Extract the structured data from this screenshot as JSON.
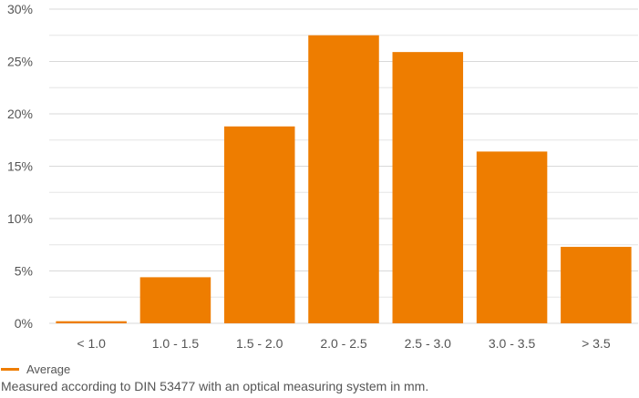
{
  "chart_data": {
    "type": "bar",
    "categories": [
      "< 1.0",
      "1.0 - 1.5",
      "1.5 - 2.0",
      "2.0 - 2.5",
      "2.5 - 3.0",
      "3.0 - 3.5",
      "> 3.5"
    ],
    "series": [
      {
        "name": "Average",
        "values": [
          0.2,
          4.4,
          18.8,
          27.5,
          25.9,
          16.4,
          7.3
        ],
        "color": "#ee7d00"
      }
    ],
    "ylim": [
      0,
      30
    ],
    "yticks": [
      0,
      5,
      10,
      15,
      20,
      25,
      30
    ],
    "ytick_format": "%",
    "grid": true,
    "legend_position": "bottom-left",
    "xlabel": "",
    "ylabel": "",
    "title": ""
  },
  "legend": {
    "label": "Average"
  },
  "footnote": "Measured according to DIN 53477 with an optical measuring system in mm."
}
